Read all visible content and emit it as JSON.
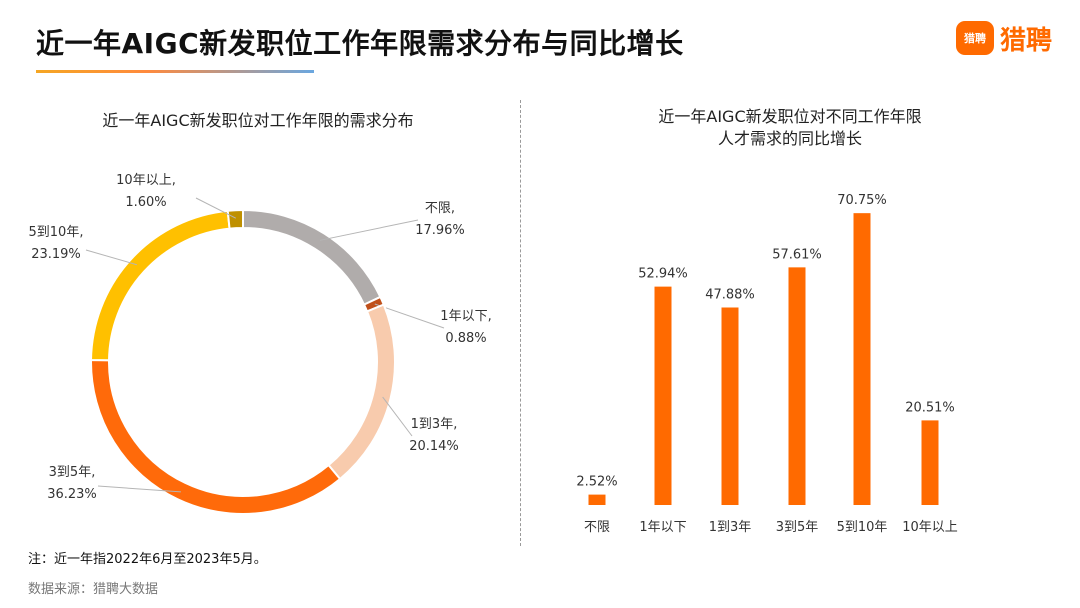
{
  "header": {
    "title": "近一年AIGC新发职位工作年限需求分布与同比增长"
  },
  "logo": {
    "badge": "猎聘",
    "text": "猎聘"
  },
  "footer": {
    "note": "注：近一年指2022年6月至2023年5月。",
    "source": "数据来源：猎聘大数据"
  },
  "colors": {
    "accent": "#ff6a00"
  },
  "chart_data": [
    {
      "type": "pie",
      "title": "近一年AIGC新发职位对工作年限的需求分布",
      "donut": true,
      "slices": [
        {
          "name": "不限",
          "value": 17.96,
          "label": "17.96%",
          "color": "#b0acab"
        },
        {
          "name": "1年以下",
          "value": 0.88,
          "label": "0.88%",
          "color": "#c0501a"
        },
        {
          "name": "1到3年",
          "value": 20.14,
          "label": "20.14%",
          "color": "#f8cbad"
        },
        {
          "name": "3到5年",
          "value": 36.23,
          "label": "36.23%",
          "color": "#ff6a0a"
        },
        {
          "name": "5到10年",
          "value": 23.19,
          "label": "23.19%",
          "color": "#ffc000"
        },
        {
          "name": "10年以上",
          "value": 1.6,
          "label": "1.60%",
          "color": "#bf9000"
        }
      ]
    },
    {
      "type": "bar",
      "title_lines": [
        "近一年AIGC新发职位对不同工作年限",
        "人才需求的同比增长"
      ],
      "categories": [
        "不限",
        "1年以下",
        "1到3年",
        "3到5年",
        "5到10年",
        "10年以上"
      ],
      "values": [
        2.52,
        52.94,
        47.88,
        57.61,
        70.75,
        20.51
      ],
      "value_labels": [
        "2.52%",
        "52.94%",
        "47.88%",
        "57.61%",
        "70.75%",
        "20.51%"
      ],
      "ylim": [
        0,
        80
      ],
      "grid": false,
      "color": "#ff6a00"
    }
  ]
}
